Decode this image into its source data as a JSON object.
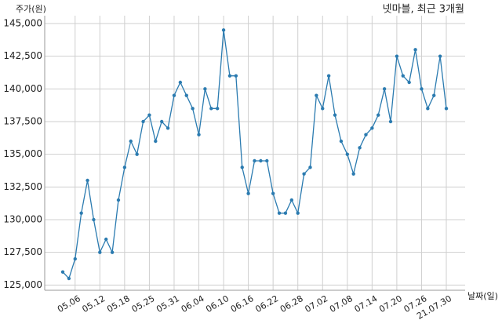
{
  "chart_data": {
    "type": "line",
    "title": "넷마블, 최근 3개월",
    "y_label": "주가(원)",
    "x_label": "날짜(일)",
    "categories": [
      null,
      null,
      "05.06",
      null,
      null,
      null,
      "05.12",
      null,
      null,
      null,
      "05.18",
      null,
      null,
      null,
      "05.25",
      null,
      null,
      null,
      "05.31",
      null,
      null,
      null,
      "06.04",
      null,
      null,
      null,
      "06.10",
      null,
      null,
      null,
      "06.16",
      null,
      null,
      null,
      "06.22",
      null,
      null,
      null,
      "06.28",
      null,
      null,
      null,
      "07.02",
      null,
      null,
      null,
      "07.08",
      null,
      null,
      null,
      "07.14",
      null,
      null,
      null,
      "07.20",
      null,
      null,
      null,
      "07.26",
      null,
      null,
      null,
      "21.07.30"
    ],
    "series": [
      {
        "name": "넷마블",
        "color": "#2b7bb0",
        "values": [
          126000,
          125500,
          127000,
          130500,
          133000,
          130000,
          127500,
          128500,
          127500,
          131500,
          134000,
          136000,
          135000,
          137500,
          138000,
          136000,
          137500,
          137000,
          139500,
          140500,
          139500,
          138500,
          136500,
          140000,
          138500,
          138500,
          144500,
          141000,
          141000,
          134000,
          132000,
          134500,
          134500,
          134500,
          132000,
          130500,
          130500,
          131500,
          130500,
          133500,
          134000,
          139500,
          138500,
          141000,
          138000,
          136000,
          135000,
          133500,
          135500,
          136500,
          137000,
          138000,
          140000,
          137500,
          142500,
          141000,
          140500,
          143000,
          140000,
          138500,
          139500,
          142500,
          138500
        ]
      }
    ],
    "ylim": [
      124600,
      145600
    ],
    "yticks": [
      {
        "value": 125000,
        "label": "125,000"
      },
      {
        "value": 127500,
        "label": "127,500"
      },
      {
        "value": 130000,
        "label": "130,000"
      },
      {
        "value": 132500,
        "label": "132,500"
      },
      {
        "value": 135000,
        "label": "135,000"
      },
      {
        "value": 137500,
        "label": "137,500"
      },
      {
        "value": 140000,
        "label": "140,000"
      },
      {
        "value": 142500,
        "label": "142,500"
      },
      {
        "value": 145000,
        "label": "145,000"
      }
    ],
    "grid": true
  }
}
